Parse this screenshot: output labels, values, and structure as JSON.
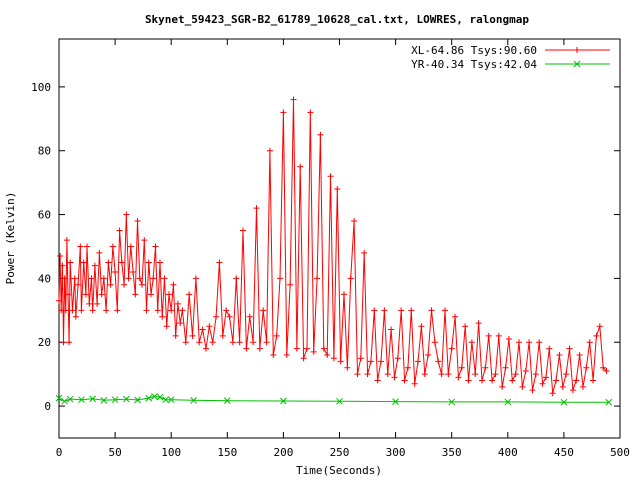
{
  "chart_data": {
    "type": "line",
    "title": "Skynet_59423_SGR-B2_61789_10628_cal.txt, LOWRES, ralongmap",
    "xlabel": "Time(Seconds)",
    "ylabel": "Power (Kelvin)",
    "xlim": [
      0,
      500
    ],
    "ylim": [
      -10,
      115
    ],
    "xticks": [
      0,
      50,
      100,
      150,
      200,
      250,
      300,
      350,
      400,
      450,
      500
    ],
    "yticks": [
      0,
      20,
      40,
      60,
      80,
      100
    ],
    "grid": false,
    "legend_position": "top-right",
    "series": [
      {
        "name": "XL-64.86 Tsys:90.60",
        "color": "#ff0000",
        "marker": "plus",
        "x": [
          0,
          1,
          2,
          3,
          4,
          5,
          6,
          7,
          8,
          9,
          10,
          12,
          14,
          15,
          17,
          19,
          20,
          22,
          24,
          25,
          27,
          29,
          30,
          32,
          34,
          36,
          38,
          40,
          42,
          44,
          46,
          48,
          50,
          52,
          54,
          56,
          58,
          60,
          62,
          64,
          66,
          68,
          70,
          72,
          74,
          76,
          78,
          80,
          82,
          84,
          86,
          88,
          90,
          92,
          94,
          96,
          98,
          100,
          102,
          104,
          106,
          108,
          110,
          113,
          116,
          119,
          122,
          125,
          128,
          131,
          134,
          137,
          140,
          143,
          146,
          149,
          152,
          155,
          158,
          161,
          164,
          167,
          170,
          173,
          176,
          179,
          182,
          185,
          188,
          191,
          194,
          197,
          200,
          203,
          206,
          209,
          212,
          215,
          218,
          221,
          224,
          227,
          230,
          233,
          236,
          239,
          242,
          245,
          248,
          251,
          254,
          257,
          260,
          263,
          266,
          269,
          272,
          275,
          278,
          281,
          284,
          287,
          290,
          293,
          296,
          299,
          302,
          305,
          308,
          311,
          314,
          317,
          320,
          323,
          326,
          329,
          332,
          335,
          338,
          341,
          344,
          347,
          350,
          353,
          356,
          359,
          362,
          365,
          368,
          371,
          374,
          377,
          380,
          383,
          386,
          389,
          392,
          395,
          398,
          401,
          404,
          407,
          410,
          413,
          416,
          419,
          422,
          425,
          428,
          431,
          434,
          437,
          440,
          443,
          446,
          449,
          452,
          455,
          458,
          461,
          464,
          467,
          470,
          473,
          476,
          479,
          482,
          485,
          488
        ],
        "y": [
          33,
          47,
          30,
          44,
          20,
          40,
          30,
          52,
          35,
          20,
          45,
          30,
          40,
          28,
          38,
          50,
          30,
          45,
          35,
          50,
          32,
          40,
          30,
          44,
          32,
          48,
          35,
          40,
          30,
          45,
          38,
          50,
          42,
          30,
          55,
          45,
          38,
          60,
          40,
          50,
          42,
          35,
          58,
          40,
          38,
          52,
          30,
          45,
          35,
          40,
          50,
          30,
          45,
          28,
          40,
          25,
          35,
          30,
          38,
          22,
          32,
          26,
          30,
          20,
          35,
          22,
          40,
          20,
          24,
          18,
          25,
          20,
          28,
          45,
          22,
          30,
          28,
          20,
          40,
          20,
          55,
          18,
          28,
          20,
          62,
          18,
          30,
          20,
          80,
          16,
          22,
          40,
          92,
          16,
          38,
          96,
          18,
          75,
          15,
          18,
          92,
          17,
          40,
          85,
          18,
          16,
          72,
          15,
          68,
          14,
          35,
          12,
          40,
          58,
          10,
          15,
          48,
          10,
          14,
          30,
          8,
          14,
          30,
          10,
          24,
          9,
          15,
          30,
          8,
          12,
          30,
          7,
          14,
          25,
          10,
          16,
          30,
          20,
          14,
          10,
          30,
          10,
          18,
          28,
          9,
          12,
          25,
          8,
          20,
          10,
          26,
          8,
          12,
          22,
          8,
          10,
          22,
          6,
          12,
          21,
          8,
          10,
          20,
          6,
          11,
          20,
          5,
          10,
          20,
          7,
          9,
          18,
          4,
          8,
          16,
          6,
          10,
          18,
          5,
          8,
          16,
          6,
          12,
          20,
          8,
          22,
          25,
          12,
          11
        ]
      },
      {
        "name": "YR-40.34 Tsys:42.04",
        "color": "#00c000",
        "marker": "cross",
        "x": [
          0,
          5,
          10,
          20,
          30,
          40,
          50,
          60,
          70,
          80,
          85,
          90,
          95,
          100,
          120,
          150,
          200,
          250,
          300,
          350,
          400,
          450,
          490
        ],
        "y": [
          2.5,
          1.5,
          2.2,
          2.0,
          2.3,
          1.8,
          2.0,
          2.2,
          1.9,
          2.5,
          3.0,
          2.8,
          2.0,
          2.0,
          1.8,
          1.7,
          1.6,
          1.5,
          1.4,
          1.3,
          1.3,
          1.2,
          1.2
        ]
      }
    ]
  }
}
